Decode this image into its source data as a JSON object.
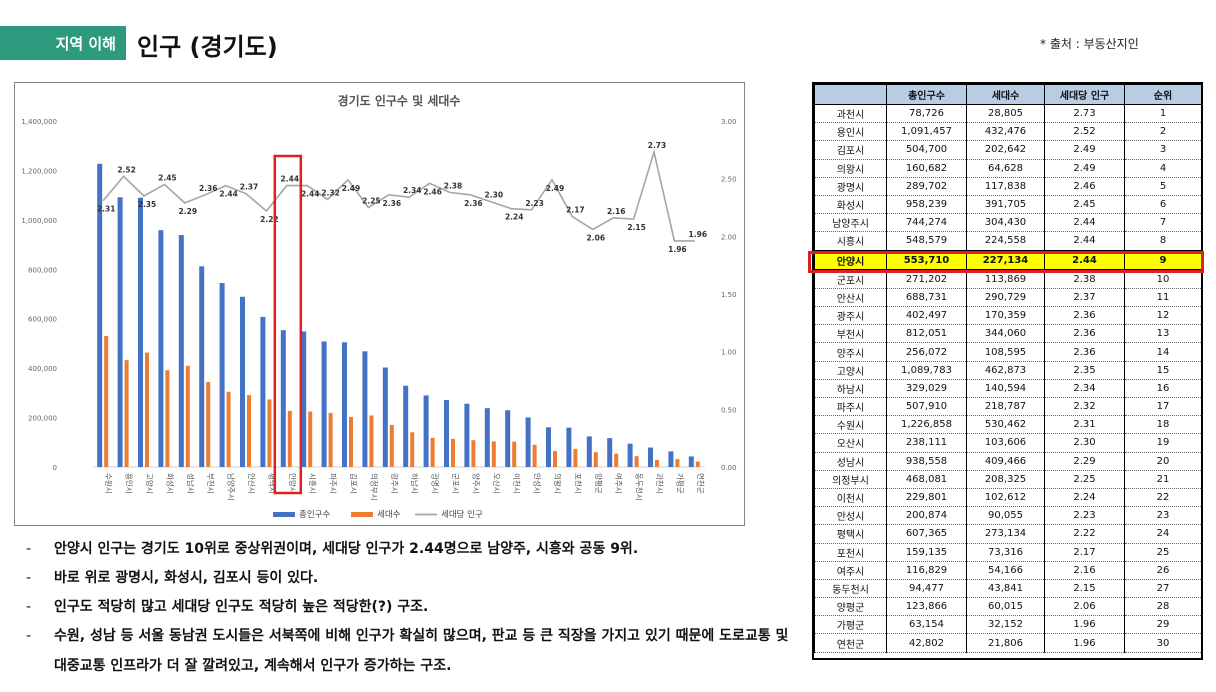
{
  "header": {
    "section_tag": "지역 이해",
    "title": "인구 (경기도)",
    "source": "* 출처 : 부동산지인"
  },
  "colors": {
    "population": "#4472c4",
    "households": "#ed7d31",
    "per_household": "#a5a5a5",
    "highlight_box": "#e02020",
    "section_tag": "#2d9a7e",
    "table_header": "#b8cce4",
    "table_highlight": "#ffff00"
  },
  "chart_data": {
    "type": "bar",
    "title": "경기도 인구수 및 세대수",
    "categories": [
      "수원시",
      "용인시",
      "고양시",
      "화성시",
      "성남시",
      "부천시",
      "남양주시",
      "안산시",
      "평택시",
      "안양시",
      "시흥시",
      "파주시",
      "김포시",
      "의정부시",
      "광주시",
      "하남시",
      "광명시",
      "군포시",
      "양주시",
      "오산시",
      "이천시",
      "안성시",
      "의왕시",
      "포천시",
      "양평군",
      "여주시",
      "동두천시",
      "과천시",
      "가평군",
      "연천군"
    ],
    "series": [
      {
        "name": "총인구수",
        "type": "bar",
        "axis": "left",
        "values": [
          1226858,
          1091457,
          1089783,
          958239,
          938558,
          812051,
          744274,
          688731,
          607365,
          553710,
          548579,
          507910,
          504700,
          468081,
          402497,
          329029,
          289702,
          271202,
          256072,
          238111,
          229801,
          200874,
          160682,
          159135,
          123866,
          116829,
          94477,
          78726,
          63154,
          42802
        ]
      },
      {
        "name": "세대수",
        "type": "bar",
        "axis": "left",
        "values": [
          530462,
          432476,
          462873,
          391705,
          409466,
          344060,
          304430,
          290729,
          273134,
          227134,
          224558,
          218787,
          202642,
          208325,
          170359,
          140594,
          117838,
          113869,
          108595,
          103606,
          102612,
          90055,
          64628,
          73316,
          60015,
          54166,
          43841,
          28805,
          32152,
          21806
        ]
      },
      {
        "name": "세대당 인구",
        "type": "line",
        "axis": "right",
        "values": [
          2.31,
          2.52,
          2.35,
          2.45,
          2.29,
          2.36,
          2.44,
          2.37,
          2.22,
          2.44,
          2.44,
          2.32,
          2.49,
          2.25,
          2.36,
          2.34,
          2.46,
          2.38,
          2.36,
          2.3,
          2.24,
          2.23,
          2.49,
          2.17,
          2.06,
          2.16,
          2.15,
          2.73,
          1.96,
          1.96
        ]
      }
    ],
    "left_axis": {
      "ylim": [
        0,
        1400000
      ],
      "ticks": [
        "0",
        "200,000",
        "400,000",
        "600,000",
        "800,000",
        "1,000,000",
        "1,200,000",
        "1,400,000"
      ]
    },
    "right_axis": {
      "ylim": [
        0,
        3.0
      ],
      "ticks": [
        "0.00",
        "0.50",
        "1.00",
        "1.50",
        "2.00",
        "2.50",
        "3.00"
      ]
    },
    "legend_position": "bottom",
    "highlight_category": "안양시"
  },
  "table": {
    "headers": [
      "",
      "총인구수",
      "세대수",
      "세대당 인구",
      "순위"
    ],
    "highlight_rank": "9",
    "rows": [
      [
        "과천시",
        "78,726",
        "28,805",
        "2.73",
        "1"
      ],
      [
        "용인시",
        "1,091,457",
        "432,476",
        "2.52",
        "2"
      ],
      [
        "김포시",
        "504,700",
        "202,642",
        "2.49",
        "3"
      ],
      [
        "의왕시",
        "160,682",
        "64,628",
        "2.49",
        "4"
      ],
      [
        "광명시",
        "289,702",
        "117,838",
        "2.46",
        "5"
      ],
      [
        "화성시",
        "958,239",
        "391,705",
        "2.45",
        "6"
      ],
      [
        "남양주시",
        "744,274",
        "304,430",
        "2.44",
        "7"
      ],
      [
        "시흥시",
        "548,579",
        "224,558",
        "2.44",
        "8"
      ],
      [
        "안양시",
        "553,710",
        "227,134",
        "2.44",
        "9"
      ],
      [
        "군포시",
        "271,202",
        "113,869",
        "2.38",
        "10"
      ],
      [
        "안산시",
        "688,731",
        "290,729",
        "2.37",
        "11"
      ],
      [
        "광주시",
        "402,497",
        "170,359",
        "2.36",
        "12"
      ],
      [
        "부천시",
        "812,051",
        "344,060",
        "2.36",
        "13"
      ],
      [
        "양주시",
        "256,072",
        "108,595",
        "2.36",
        "14"
      ],
      [
        "고양시",
        "1,089,783",
        "462,873",
        "2.35",
        "15"
      ],
      [
        "하남시",
        "329,029",
        "140,594",
        "2.34",
        "16"
      ],
      [
        "파주시",
        "507,910",
        "218,787",
        "2.32",
        "17"
      ],
      [
        "수원시",
        "1,226,858",
        "530,462",
        "2.31",
        "18"
      ],
      [
        "오산시",
        "238,111",
        "103,606",
        "2.30",
        "19"
      ],
      [
        "성남시",
        "938,558",
        "409,466",
        "2.29",
        "20"
      ],
      [
        "의정부시",
        "468,081",
        "208,325",
        "2.25",
        "21"
      ],
      [
        "이천시",
        "229,801",
        "102,612",
        "2.24",
        "22"
      ],
      [
        "안성시",
        "200,874",
        "90,055",
        "2.23",
        "23"
      ],
      [
        "평택시",
        "607,365",
        "273,134",
        "2.22",
        "24"
      ],
      [
        "포천시",
        "159,135",
        "73,316",
        "2.17",
        "25"
      ],
      [
        "여주시",
        "116,829",
        "54,166",
        "2.16",
        "26"
      ],
      [
        "동두천시",
        "94,477",
        "43,841",
        "2.15",
        "27"
      ],
      [
        "양평군",
        "123,866",
        "60,015",
        "2.06",
        "28"
      ],
      [
        "가평군",
        "63,154",
        "32,152",
        "1.96",
        "29"
      ],
      [
        "연천군",
        "42,802",
        "21,806",
        "1.96",
        "30"
      ]
    ]
  },
  "bullets": [
    "안양시 인구는 경기도 10위로 중상위권이며, 세대당 인구가 2.44명으로 남양주, 시흥와 공동 9위.",
    "바로 위로 광명시, 화성시, 김포시 등이 있다.",
    "인구도 적당히 많고 세대당 인구도 적당히 높은 적당한(?) 구조.",
    "수원, 성남 등 서울 동남권 도시들은 서북쪽에 비해 인구가 확실히 많으며, 판교 등 큰 직장을 가지고 있기 때문에 도로교통 및 대중교통 인프라가 더 잘 깔려있고, 계속해서 인구가 증가하는 구조."
  ]
}
